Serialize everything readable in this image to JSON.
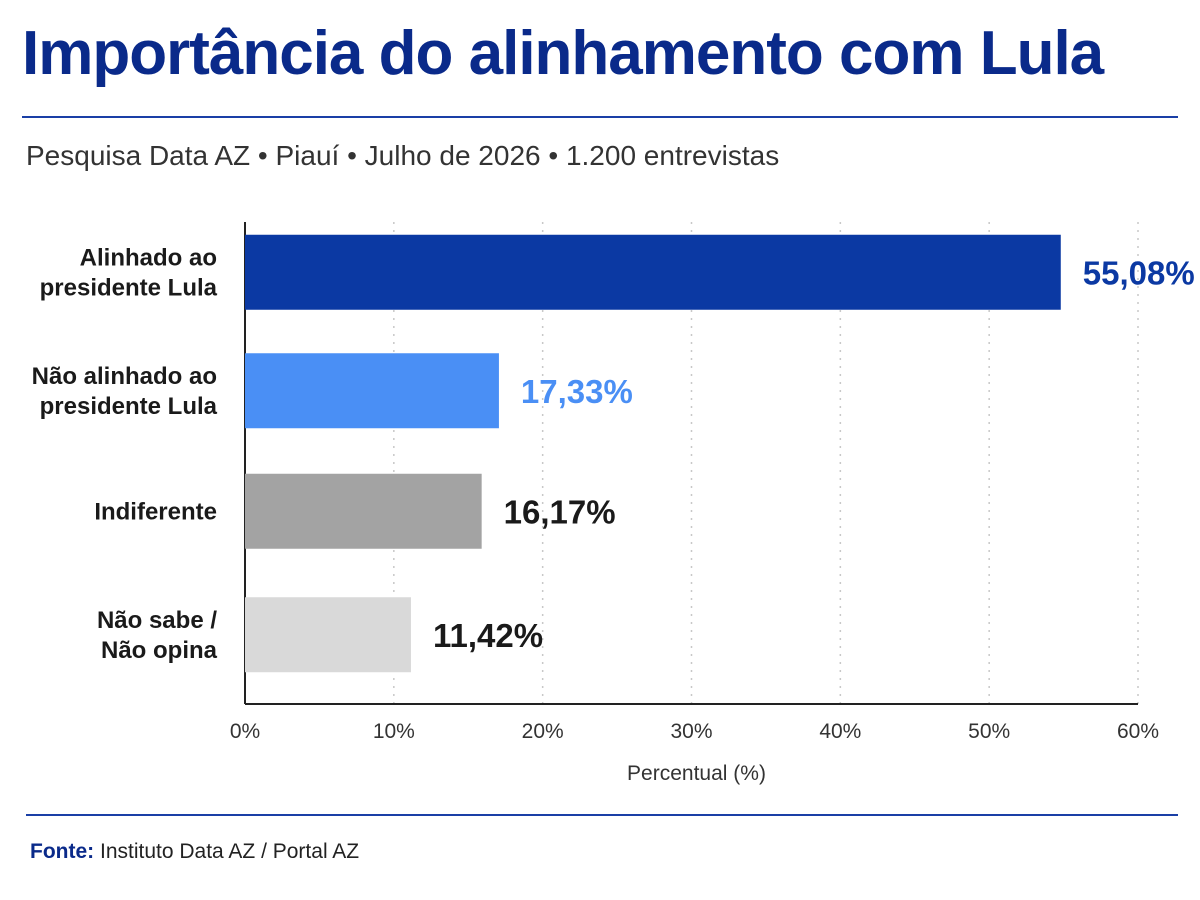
{
  "header": {
    "title": "Importância do alinhamento com Lula",
    "subtitle": "Pesquisa Data AZ • Piauí • Julho de 2026 • 1.200 entrevistas"
  },
  "footer": {
    "source_label": "Fonte:",
    "source_text": "Instituto Data AZ / Portal AZ"
  },
  "chart_data": {
    "type": "bar",
    "orientation": "horizontal",
    "categories": [
      [
        "Alinhado ao",
        "presidente Lula"
      ],
      [
        "Não alinhado ao",
        "presidente Lula"
      ],
      [
        "Indiferente"
      ],
      [
        "Não sabe /",
        "Não opina"
      ]
    ],
    "values": [
      55.08,
      17.33,
      16.17,
      11.42
    ],
    "value_labels": [
      "55,08%",
      "17,33%",
      "16,17%",
      "11,42%"
    ],
    "bar_colors": [
      "#0b39a3",
      "#4a8ff5",
      "#a3a3a3",
      "#d9d9d9"
    ],
    "label_colors": [
      "#0b39a3",
      "#4a8ff5",
      "#1a1a1a",
      "#1a1a1a"
    ],
    "xlabel": "Percentual (%)",
    "xlim": [
      0,
      60
    ],
    "xticks": [
      0,
      10,
      20,
      30,
      40,
      50,
      60
    ],
    "xtick_labels": [
      "0%",
      "10%",
      "20%",
      "30%",
      "40%",
      "50%",
      "60%"
    ],
    "grid": "vertical-dotted"
  }
}
